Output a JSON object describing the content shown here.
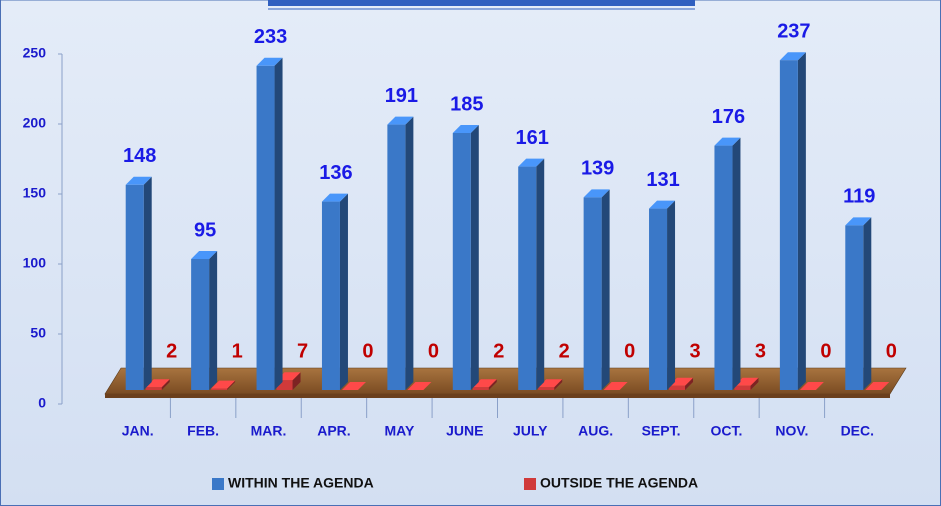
{
  "chart_data": {
    "type": "bar3d",
    "categories": [
      "JAN.",
      "FEB.",
      "MAR.",
      "APR.",
      "MAY",
      "JUNE",
      "JULY",
      "AUG.",
      "SEPT.",
      "OCT.",
      "NOV.",
      "DEC."
    ],
    "series": [
      {
        "name": "WITHIN THE AGENDA",
        "color": "#3a78c8",
        "values": [
          148,
          95,
          233,
          136,
          191,
          185,
          161,
          139,
          131,
          176,
          237,
          119
        ]
      },
      {
        "name": "OUTSIDE THE AGENDA",
        "color": "#d03a3a",
        "values": [
          2,
          1,
          7,
          0,
          0,
          2,
          2,
          0,
          3,
          3,
          0,
          0
        ]
      }
    ],
    "ylim": [
      0,
      250
    ],
    "yticks": [
      0,
      50,
      100,
      150,
      200,
      250
    ],
    "grid": false,
    "legend": "bottom"
  }
}
